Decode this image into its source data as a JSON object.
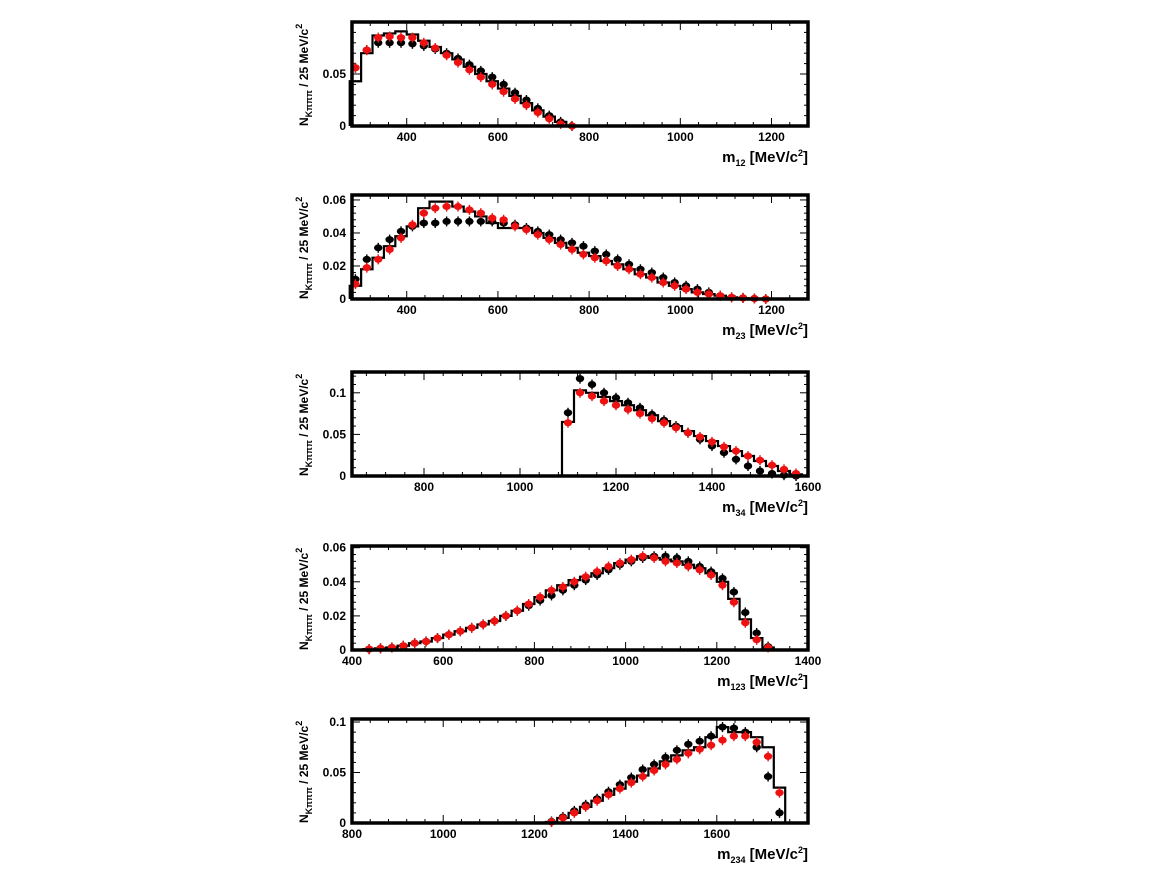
{
  "ylabel": {
    "main": "N",
    "sub": "Kπππ",
    "rest": " / 25 MeV/c",
    "sup": "2"
  },
  "colors": {
    "data": "#000000",
    "model": "#ee1111",
    "hist": "#000000"
  },
  "chart_data": [
    {
      "type": "line",
      "name": "m12",
      "xlabel": {
        "main": "m",
        "sub": "12",
        "rest": " [MeV/c",
        "sup": "2",
        "end": "]"
      },
      "xlim": [
        280,
        1280
      ],
      "ylim": [
        0,
        0.1
      ],
      "xticks": [
        400,
        600,
        800,
        1000,
        1200
      ],
      "xtick_labels": [
        "400",
        "600",
        "800",
        "1000",
        "1200"
      ],
      "yticks": [
        0,
        0.05
      ],
      "ytick_labels": [
        "0",
        "0.05"
      ],
      "bin_width": 25,
      "histogram": {
        "x": [
          287.5,
          312.5,
          337.5,
          362.5,
          387.5,
          412.5,
          437.5,
          462.5,
          487.5,
          512.5,
          537.5,
          562.5,
          587.5,
          612.5,
          637.5,
          662.5,
          687.5,
          712.5,
          737.5,
          762.5
        ],
        "y": [
          0.043,
          0.07,
          0.087,
          0.089,
          0.091,
          0.088,
          0.082,
          0.076,
          0.07,
          0.064,
          0.057,
          0.05,
          0.043,
          0.036,
          0.029,
          0.022,
          0.015,
          0.009,
          0.004,
          0.0
        ]
      },
      "black_points": {
        "x": [
          287.5,
          312.5,
          337.5,
          362.5,
          387.5,
          412.5,
          437.5,
          462.5,
          487.5,
          512.5,
          537.5,
          562.5,
          587.5,
          612.5,
          637.5,
          662.5,
          687.5,
          712.5,
          737.5,
          762.5
        ],
        "y": [
          0.056,
          0.073,
          0.08,
          0.08,
          0.08,
          0.079,
          0.077,
          0.074,
          0.07,
          0.065,
          0.059,
          0.053,
          0.047,
          0.04,
          0.032,
          0.025,
          0.017,
          0.01,
          0.004,
          0.0
        ]
      },
      "red_points": {
        "x": [
          287.5,
          312.5,
          337.5,
          362.5,
          387.5,
          412.5,
          437.5,
          462.5,
          487.5,
          512.5,
          537.5,
          562.5,
          587.5,
          612.5,
          637.5,
          662.5,
          687.5,
          712.5,
          737.5,
          762.5
        ],
        "y": [
          0.056,
          0.073,
          0.085,
          0.086,
          0.085,
          0.085,
          0.08,
          0.075,
          0.068,
          0.061,
          0.054,
          0.047,
          0.04,
          0.033,
          0.026,
          0.02,
          0.013,
          0.007,
          0.002,
          0.0
        ]
      }
    },
    {
      "type": "line",
      "name": "m23",
      "xlabel": {
        "main": "m",
        "sub": "23",
        "rest": " [MeV/c",
        "sup": "2",
        "end": "]"
      },
      "xlim": [
        280,
        1280
      ],
      "ylim": [
        0,
        0.063
      ],
      "xticks": [
        400,
        600,
        800,
        1000,
        1200
      ],
      "xtick_labels": [
        "400",
        "600",
        "800",
        "1000",
        "1200"
      ],
      "yticks": [
        0,
        0.02,
        0.04,
        0.06
      ],
      "ytick_labels": [
        "0",
        "0.02",
        "0.04",
        "0.06"
      ],
      "bin_width": 25,
      "histogram": {
        "x": [
          287.5,
          312.5,
          337.5,
          362.5,
          387.5,
          412.5,
          437.5,
          462.5,
          487.5,
          512.5,
          537.5,
          562.5,
          587.5,
          612.5,
          637.5,
          662.5,
          687.5,
          712.5,
          737.5,
          762.5,
          787.5,
          812.5,
          837.5,
          862.5,
          887.5,
          912.5,
          937.5,
          962.5,
          987.5,
          1012.5,
          1037.5,
          1062.5,
          1087.5,
          1112.5,
          1137.5,
          1162.5,
          1187.5
        ],
        "y": [
          0.008,
          0.018,
          0.025,
          0.032,
          0.038,
          0.044,
          0.055,
          0.059,
          0.059,
          0.056,
          0.053,
          0.05,
          0.046,
          0.043,
          0.043,
          0.043,
          0.04,
          0.037,
          0.034,
          0.031,
          0.028,
          0.026,
          0.023,
          0.021,
          0.018,
          0.015,
          0.013,
          0.01,
          0.008,
          0.006,
          0.004,
          0.003,
          0.002,
          0.001,
          0.0005,
          0.0002,
          0.0
        ]
      },
      "black_points": {
        "x": [
          287.5,
          312.5,
          337.5,
          362.5,
          387.5,
          412.5,
          437.5,
          462.5,
          487.5,
          512.5,
          537.5,
          562.5,
          587.5,
          612.5,
          637.5,
          662.5,
          687.5,
          712.5,
          737.5,
          762.5,
          787.5,
          812.5,
          837.5,
          862.5,
          887.5,
          912.5,
          937.5,
          962.5,
          987.5,
          1012.5,
          1037.5,
          1062.5,
          1087.5,
          1112.5,
          1137.5,
          1162.5,
          1187.5
        ],
        "y": [
          0.012,
          0.024,
          0.031,
          0.036,
          0.041,
          0.044,
          0.046,
          0.046,
          0.047,
          0.047,
          0.047,
          0.047,
          0.047,
          0.046,
          0.045,
          0.043,
          0.041,
          0.039,
          0.036,
          0.034,
          0.032,
          0.029,
          0.027,
          0.024,
          0.021,
          0.018,
          0.016,
          0.013,
          0.01,
          0.008,
          0.006,
          0.004,
          0.002,
          0.001,
          0.0007,
          0.0003,
          0.0
        ]
      },
      "red_points": {
        "x": [
          287.5,
          312.5,
          337.5,
          362.5,
          387.5,
          412.5,
          437.5,
          462.5,
          487.5,
          512.5,
          537.5,
          562.5,
          587.5,
          612.5,
          637.5,
          662.5,
          687.5,
          712.5,
          737.5,
          762.5,
          787.5,
          812.5,
          837.5,
          862.5,
          887.5,
          912.5,
          937.5,
          962.5,
          987.5,
          1012.5,
          1037.5,
          1062.5,
          1087.5,
          1112.5,
          1137.5,
          1162.5,
          1187.5
        ],
        "y": [
          0.009,
          0.019,
          0.024,
          0.03,
          0.037,
          0.045,
          0.052,
          0.055,
          0.056,
          0.056,
          0.054,
          0.052,
          0.049,
          0.048,
          0.044,
          0.042,
          0.039,
          0.036,
          0.033,
          0.03,
          0.027,
          0.025,
          0.023,
          0.02,
          0.018,
          0.015,
          0.013,
          0.01,
          0.008,
          0.006,
          0.004,
          0.003,
          0.002,
          0.001,
          0.0006,
          0.0003,
          0.0
        ]
      }
    },
    {
      "type": "line",
      "name": "m34",
      "xlabel": {
        "main": "m",
        "sub": "34",
        "rest": " [MeV/c",
        "sup": "2",
        "end": "]"
      },
      "xlim": [
        650,
        1600
      ],
      "ylim": [
        0,
        0.125
      ],
      "xticks": [
        800,
        1000,
        1200,
        1400,
        1600
      ],
      "xtick_labels": [
        "800",
        "1000",
        "1200",
        "1400",
        "1600"
      ],
      "yticks": [
        0,
        0.05,
        0.1
      ],
      "ytick_labels": [
        "0",
        "0.05",
        "0.1"
      ],
      "bin_width": 25,
      "histogram": {
        "x": [
          1100,
          1125,
          1150,
          1175,
          1200,
          1225,
          1250,
          1275,
          1300,
          1325,
          1350,
          1375,
          1400,
          1425,
          1450,
          1475,
          1500,
          1525,
          1550,
          1575
        ],
        "y": [
          0.065,
          0.103,
          0.1,
          0.095,
          0.09,
          0.085,
          0.079,
          0.073,
          0.066,
          0.06,
          0.054,
          0.048,
          0.042,
          0.036,
          0.03,
          0.024,
          0.018,
          0.012,
          0.006,
          0.002
        ]
      },
      "black_points": {
        "x": [
          1100,
          1125,
          1150,
          1175,
          1200,
          1225,
          1250,
          1275,
          1300,
          1325,
          1350,
          1375,
          1400,
          1425,
          1450,
          1475,
          1500,
          1525,
          1550,
          1575
        ],
        "y": [
          0.076,
          0.117,
          0.11,
          0.1,
          0.094,
          0.088,
          0.082,
          0.074,
          0.067,
          0.06,
          0.052,
          0.044,
          0.036,
          0.028,
          0.02,
          0.012,
          0.006,
          0.003,
          0.001,
          0.0
        ]
      },
      "red_points": {
        "x": [
          1100,
          1125,
          1150,
          1175,
          1200,
          1225,
          1250,
          1275,
          1300,
          1325,
          1350,
          1375,
          1400,
          1425,
          1450,
          1475,
          1500,
          1525,
          1550,
          1575
        ],
        "y": [
          0.064,
          0.1,
          0.096,
          0.09,
          0.085,
          0.08,
          0.075,
          0.069,
          0.064,
          0.058,
          0.052,
          0.047,
          0.041,
          0.035,
          0.03,
          0.024,
          0.019,
          0.013,
          0.008,
          0.003
        ]
      }
    },
    {
      "type": "line",
      "name": "m123",
      "xlabel": {
        "main": "m",
        "sub": "123",
        "rest": " [MeV/c",
        "sup": "2",
        "end": "]"
      },
      "xlim": [
        400,
        1400
      ],
      "ylim": [
        0,
        0.061
      ],
      "xticks": [
        400,
        600,
        800,
        1000,
        1200,
        1400
      ],
      "xtick_labels": [
        "400",
        "600",
        "800",
        "1000",
        "1200",
        "1400"
      ],
      "yticks": [
        0,
        0.02,
        0.04,
        0.06
      ],
      "ytick_labels": [
        "0",
        "0.02",
        "0.04",
        "0.06"
      ],
      "bin_width": 25,
      "histogram": {
        "x": [
          437.5,
          462.5,
          487.5,
          512.5,
          537.5,
          562.5,
          587.5,
          612.5,
          637.5,
          662.5,
          687.5,
          712.5,
          737.5,
          762.5,
          787.5,
          812.5,
          837.5,
          862.5,
          887.5,
          912.5,
          937.5,
          962.5,
          987.5,
          1012.5,
          1037.5,
          1062.5,
          1087.5,
          1112.5,
          1137.5,
          1162.5,
          1187.5,
          1212.5,
          1237.5,
          1262.5,
          1287.5,
          1312.5
        ],
        "y": [
          0.0005,
          0.001,
          0.0015,
          0.0025,
          0.004,
          0.005,
          0.007,
          0.009,
          0.011,
          0.013,
          0.015,
          0.017,
          0.02,
          0.023,
          0.027,
          0.031,
          0.035,
          0.038,
          0.041,
          0.043,
          0.045,
          0.048,
          0.051,
          0.053,
          0.055,
          0.054,
          0.053,
          0.052,
          0.05,
          0.048,
          0.045,
          0.04,
          0.03,
          0.018,
          0.007,
          0.0015
        ]
      },
      "black_points": {
        "x": [
          437.5,
          462.5,
          487.5,
          512.5,
          537.5,
          562.5,
          587.5,
          612.5,
          637.5,
          662.5,
          687.5,
          712.5,
          737.5,
          762.5,
          787.5,
          812.5,
          837.5,
          862.5,
          887.5,
          912.5,
          937.5,
          962.5,
          987.5,
          1012.5,
          1037.5,
          1062.5,
          1087.5,
          1112.5,
          1137.5,
          1162.5,
          1187.5,
          1212.5,
          1237.5,
          1262.5,
          1287.5,
          1312.5
        ],
        "y": [
          0.0005,
          0.001,
          0.0015,
          0.0025,
          0.004,
          0.005,
          0.007,
          0.009,
          0.011,
          0.013,
          0.015,
          0.017,
          0.02,
          0.023,
          0.026,
          0.029,
          0.032,
          0.035,
          0.038,
          0.041,
          0.044,
          0.047,
          0.05,
          0.052,
          0.054,
          0.055,
          0.055,
          0.054,
          0.052,
          0.049,
          0.046,
          0.042,
          0.034,
          0.022,
          0.01,
          0.002
        ]
      },
      "red_points": {
        "x": [
          437.5,
          462.5,
          487.5,
          512.5,
          537.5,
          562.5,
          587.5,
          612.5,
          637.5,
          662.5,
          687.5,
          712.5,
          737.5,
          762.5,
          787.5,
          812.5,
          837.5,
          862.5,
          887.5,
          912.5,
          937.5,
          962.5,
          987.5,
          1012.5,
          1037.5,
          1062.5,
          1087.5,
          1112.5,
          1137.5,
          1162.5,
          1187.5,
          1212.5,
          1237.5,
          1262.5,
          1287.5,
          1312.5
        ],
        "y": [
          0.0005,
          0.001,
          0.0015,
          0.0025,
          0.004,
          0.005,
          0.007,
          0.009,
          0.011,
          0.013,
          0.015,
          0.017,
          0.02,
          0.023,
          0.027,
          0.031,
          0.035,
          0.037,
          0.04,
          0.043,
          0.046,
          0.049,
          0.051,
          0.053,
          0.055,
          0.054,
          0.052,
          0.051,
          0.049,
          0.047,
          0.044,
          0.038,
          0.028,
          0.016,
          0.006,
          0.0015
        ]
      }
    },
    {
      "type": "line",
      "name": "m234",
      "xlabel": {
        "main": "m",
        "sub": "234",
        "rest": " [MeV/c",
        "sup": "2",
        "end": "]"
      },
      "xlim": [
        800,
        1800
      ],
      "ylim": [
        0,
        0.103
      ],
      "xticks": [
        800,
        1000,
        1200,
        1400,
        1600
      ],
      "xtick_labels": [
        "800",
        "1000",
        "1200",
        "1400",
        "1600"
      ],
      "yticks": [
        0,
        0.05,
        0.1
      ],
      "ytick_labels": [
        "0",
        "0.05",
        "0.1"
      ],
      "bin_width": 25,
      "histogram": {
        "x": [
          1237.5,
          1262.5,
          1287.5,
          1312.5,
          1337.5,
          1362.5,
          1387.5,
          1412.5,
          1437.5,
          1462.5,
          1487.5,
          1512.5,
          1537.5,
          1562.5,
          1587.5,
          1612.5,
          1637.5,
          1662.5,
          1687.5,
          1712.5,
          1737.5
        ],
        "y": [
          0.001,
          0.005,
          0.01,
          0.016,
          0.022,
          0.028,
          0.034,
          0.041,
          0.047,
          0.054,
          0.061,
          0.067,
          0.072,
          0.075,
          0.085,
          0.095,
          0.09,
          0.09,
          0.085,
          0.075,
          0.035
        ]
      },
      "black_points": {
        "x": [
          1237.5,
          1262.5,
          1287.5,
          1312.5,
          1337.5,
          1362.5,
          1387.5,
          1412.5,
          1437.5,
          1462.5,
          1487.5,
          1512.5,
          1537.5,
          1562.5,
          1587.5,
          1612.5,
          1637.5,
          1662.5,
          1687.5,
          1712.5,
          1737.5
        ],
        "y": [
          0.0015,
          0.006,
          0.012,
          0.018,
          0.024,
          0.031,
          0.038,
          0.045,
          0.053,
          0.058,
          0.065,
          0.072,
          0.078,
          0.081,
          0.086,
          0.095,
          0.094,
          0.09,
          0.075,
          0.046,
          0.01
        ]
      },
      "red_points": {
        "x": [
          1237.5,
          1262.5,
          1287.5,
          1312.5,
          1337.5,
          1362.5,
          1387.5,
          1412.5,
          1437.5,
          1462.5,
          1487.5,
          1512.5,
          1537.5,
          1562.5,
          1587.5,
          1612.5,
          1637.5,
          1662.5,
          1687.5,
          1712.5,
          1737.5
        ],
        "y": [
          0.001,
          0.005,
          0.01,
          0.016,
          0.022,
          0.028,
          0.034,
          0.04,
          0.046,
          0.052,
          0.058,
          0.063,
          0.069,
          0.073,
          0.077,
          0.082,
          0.086,
          0.086,
          0.08,
          0.066,
          0.03
        ]
      }
    }
  ]
}
